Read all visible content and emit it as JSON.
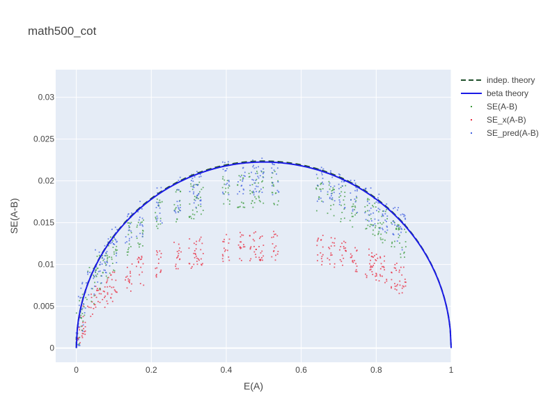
{
  "chart_data": {
    "type": "scatter",
    "title": "math500_cot",
    "xlabel": "E(A)",
    "ylabel": "SE(A-B)",
    "xlim": [
      -0.055,
      1.0
    ],
    "ylim": [
      -0.0017,
      0.0333
    ],
    "grid": true,
    "plot_bgcolor": "#e5ecf6",
    "legend_position": "right",
    "x_ticks": [
      0,
      0.2,
      0.4,
      0.6,
      0.8,
      1
    ],
    "x_tick_labels": [
      "0",
      "0.2",
      "0.4",
      "0.6",
      "0.8",
      "1"
    ],
    "y_ticks": [
      0,
      0.005,
      0.01,
      0.015,
      0.02,
      0.025,
      0.03
    ],
    "y_tick_labels": [
      "0",
      "0.005",
      "0.01",
      "0.015",
      "0.02",
      "0.025",
      "0.03"
    ],
    "x_groups": [
      0.0,
      0.01,
      0.02,
      0.04,
      0.06,
      0.08,
      0.1,
      0.14,
      0.17,
      0.22,
      0.27,
      0.31,
      0.33,
      0.4,
      0.44,
      0.47,
      0.49,
      0.53,
      0.65,
      0.68,
      0.71,
      0.74,
      0.78,
      0.8,
      0.82,
      0.85,
      0.87
    ],
    "series": [
      {
        "name": "indep. theory",
        "kind": "line",
        "formula": "sqrt(2*x*(1-x)/1000)",
        "x_range": [
          0,
          1
        ],
        "color": "#1f4f2a",
        "dash": "dash"
      },
      {
        "name": "beta theory",
        "kind": "line",
        "formula": "0.0445*sqrt(x*(1-x))",
        "x_range": [
          0,
          1
        ],
        "color": "#1a1ae6",
        "dash": "solid"
      },
      {
        "name": "SE(A-B)",
        "kind": "markers",
        "color": "#3a9a3a",
        "center_formula": "0.85*indep",
        "spread": 0.0022
      },
      {
        "name": "SE_x(A-B)",
        "kind": "markers",
        "color": "#e8283c",
        "center_formula": "0.0245*sqrt(x*(1-x))",
        "spread": 0.0018
      },
      {
        "name": "SE_pred(A-B)",
        "kind": "markers",
        "color": "#3f5fe0",
        "center_formula": "0.92*indep",
        "spread": 0.0022
      }
    ]
  }
}
